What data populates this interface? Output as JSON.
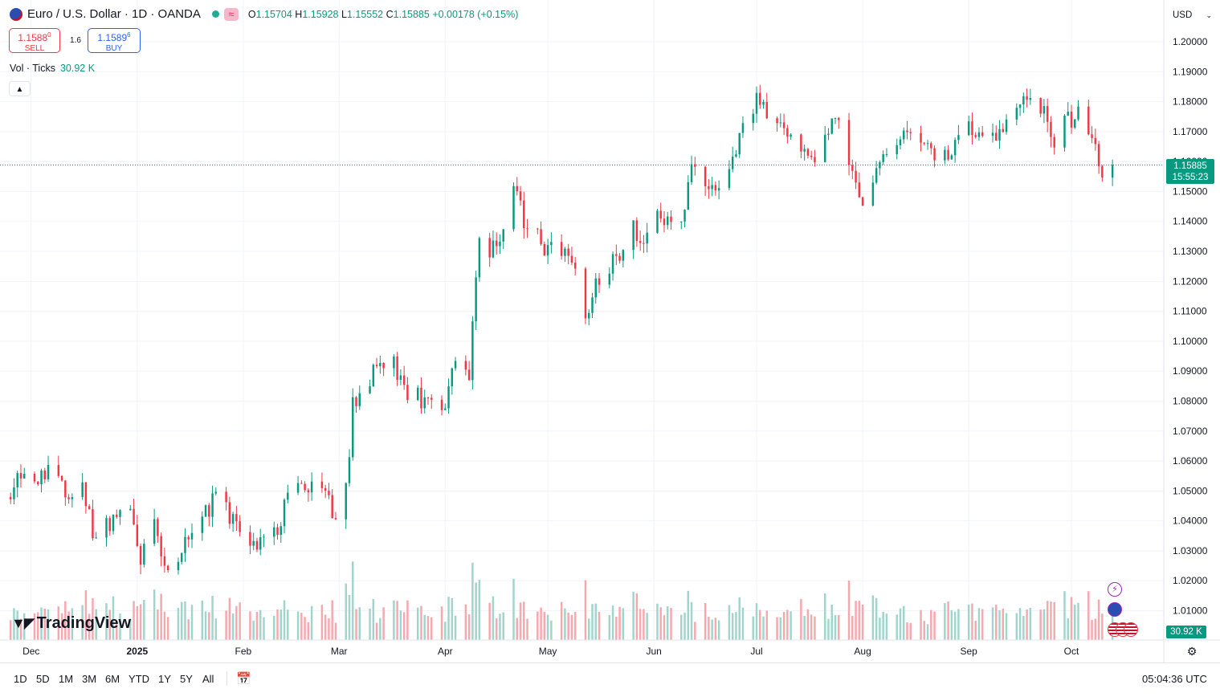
{
  "header": {
    "symbol_title": "Euro / U.S. Dollar · 1D · OANDA",
    "delay_icon": "≈",
    "ohlc": {
      "o_label": "O",
      "o": "1.15704",
      "h_label": "H",
      "h": "1.15928",
      "l_label": "L",
      "l": "1.15552",
      "c_label": "C",
      "c": "1.15885",
      "change": "+0.00178 (+0.15%)"
    }
  },
  "trade": {
    "sell_price": "1.1588",
    "sell_price_sup": "0",
    "sell_label": "SELL",
    "spread": "1.6",
    "buy_price": "1.1589",
    "buy_price_sup": "6",
    "buy_label": "BUY"
  },
  "volume_legend": {
    "label": "Vol · Ticks",
    "value": "30.92 K"
  },
  "collapse_icon": "chevron-up-icon",
  "currency": "USD",
  "last_price": {
    "price": "1.15885",
    "countdown": "15:55:23"
  },
  "volume_badge": "30.92 K",
  "logo_text": "TradingView",
  "bottom_bar": {
    "ranges": [
      "1D",
      "5D",
      "1M",
      "3M",
      "6M",
      "YTD",
      "1Y",
      "5Y",
      "All"
    ],
    "clock": "05:04:36 UTC"
  },
  "colors": {
    "up": "#089981",
    "down": "#f23645",
    "up_vol": "#9fd5cb",
    "down_vol": "#f5a8ae",
    "grid": "#f0f3fa"
  },
  "chart_data": {
    "type": "candlestick",
    "title": "Euro / U.S. Dollar",
    "ylim": [
      1.0,
      1.205
    ],
    "y_ticks": [
      "1.20000",
      "1.19000",
      "1.18000",
      "1.17000",
      "1.16000",
      "1.15000",
      "1.14000",
      "1.13000",
      "1.12000",
      "1.11000",
      "1.10000",
      "1.09000",
      "1.08000",
      "1.07000",
      "1.06000",
      "1.05000",
      "1.04000",
      "1.03000",
      "1.02000",
      "1.01000"
    ],
    "x_ticks": [
      "Dec",
      "2025",
      "Feb",
      "Mar",
      "Apr",
      "May",
      "Jun",
      "Jul",
      "Aug",
      "Sep",
      "Oct"
    ],
    "last_price": 1.15885,
    "series": [
      {
        "name": "EURUSD",
        "anchors": [
          {
            "x": "Nov 25",
            "y": 1.05
          },
          {
            "x": "Nov 27",
            "y": 1.055
          },
          {
            "x": "Nov 29",
            "y": 1.058
          },
          {
            "x": "Dec 03",
            "y": 1.051
          },
          {
            "x": "Dec 06",
            "y": 1.058
          },
          {
            "x": "Dec 11",
            "y": 1.05
          },
          {
            "x": "Dec 16",
            "y": 1.052
          },
          {
            "x": "Dec 19",
            "y": 1.036
          },
          {
            "x": "Dec 24",
            "y": 1.04
          },
          {
            "x": "Dec 30",
            "y": 1.042
          },
          {
            "x": "Jan 02",
            "y": 1.028
          },
          {
            "x": "Jan 06",
            "y": 1.038
          },
          {
            "x": "Jan 10",
            "y": 1.024
          },
          {
            "x": "Jan 14",
            "y": 1.03
          },
          {
            "x": "Jan 20",
            "y": 1.04
          },
          {
            "x": "Jan 24",
            "y": 1.05
          },
          {
            "x": "Jan 28",
            "y": 1.041
          },
          {
            "x": "Feb 03",
            "y": 1.03
          },
          {
            "x": "Feb 07",
            "y": 1.035
          },
          {
            "x": "Feb 12",
            "y": 1.04
          },
          {
            "x": "Feb 14",
            "y": 1.048
          },
          {
            "x": "Feb 20",
            "y": 1.05
          },
          {
            "x": "Feb 26",
            "y": 1.048
          },
          {
            "x": "Feb 28",
            "y": 1.038
          },
          {
            "x": "Mar 04",
            "y": 1.062
          },
          {
            "x": "Mar 05",
            "y": 1.078
          },
          {
            "x": "Mar 07",
            "y": 1.083
          },
          {
            "x": "Mar 12",
            "y": 1.09
          },
          {
            "x": "Mar 17",
            "y": 1.092
          },
          {
            "x": "Mar 20",
            "y": 1.085
          },
          {
            "x": "Mar 25",
            "y": 1.08
          },
          {
            "x": "Mar 28",
            "y": 1.082
          },
          {
            "x": "Apr 01",
            "y": 1.079
          },
          {
            "x": "Apr 04",
            "y": 1.096
          },
          {
            "x": "Apr 08",
            "y": 1.09
          },
          {
            "x": "Apr 10",
            "y": 1.12
          },
          {
            "x": "Apr 11",
            "y": 1.135
          },
          {
            "x": "Apr 15",
            "y": 1.13
          },
          {
            "x": "Apr 18",
            "y": 1.138
          },
          {
            "x": "Apr 21",
            "y": 1.15
          },
          {
            "x": "Apr 25",
            "y": 1.137
          },
          {
            "x": "Apr 30",
            "y": 1.132
          },
          {
            "x": "May 05",
            "y": 1.132
          },
          {
            "x": "May 08",
            "y": 1.125
          },
          {
            "x": "May 12",
            "y": 1.11
          },
          {
            "x": "May 15",
            "y": 1.119
          },
          {
            "x": "May 20",
            "y": 1.127
          },
          {
            "x": "May 26",
            "y": 1.137
          },
          {
            "x": "May 29",
            "y": 1.135
          },
          {
            "x": "Jun 03",
            "y": 1.142
          },
          {
            "x": "Jun 09",
            "y": 1.14
          },
          {
            "x": "Jun 12",
            "y": 1.157
          },
          {
            "x": "Jun 17",
            "y": 1.15
          },
          {
            "x": "Jun 20",
            "y": 1.148
          },
          {
            "x": "Jun 24",
            "y": 1.162
          },
          {
            "x": "Jun 27",
            "y": 1.172
          },
          {
            "x": "Jul 01",
            "y": 1.18
          },
          {
            "x": "Jul 07",
            "y": 1.171
          },
          {
            "x": "Jul 14",
            "y": 1.167
          },
          {
            "x": "Jul 18",
            "y": 1.162
          },
          {
            "x": "Jul 22",
            "y": 1.17
          },
          {
            "x": "Jul 25",
            "y": 1.175
          },
          {
            "x": "Jul 29",
            "y": 1.155
          },
          {
            "x": "Aug 01",
            "y": 1.142
          },
          {
            "x": "Aug 05",
            "y": 1.157
          },
          {
            "x": "Aug 08",
            "y": 1.164
          },
          {
            "x": "Aug 13",
            "y": 1.17
          },
          {
            "x": "Aug 20",
            "y": 1.163
          },
          {
            "x": "Aug 26",
            "y": 1.163
          },
          {
            "x": "Sep 01",
            "y": 1.17
          },
          {
            "x": "Sep 05",
            "y": 1.171
          },
          {
            "x": "Sep 10",
            "y": 1.17
          },
          {
            "x": "Sep 16",
            "y": 1.18
          },
          {
            "x": "Sep 17",
            "y": 1.182
          },
          {
            "x": "Sep 22",
            "y": 1.179
          },
          {
            "x": "Sep 25",
            "y": 1.167
          },
          {
            "x": "Sep 30",
            "y": 1.173
          },
          {
            "x": "Oct 03",
            "y": 1.175
          },
          {
            "x": "Oct 06",
            "y": 1.172
          },
          {
            "x": "Oct 08",
            "y": 1.163
          },
          {
            "x": "Oct 09",
            "y": 1.157
          },
          {
            "x": "Oct 13",
            "y": 1.159
          }
        ]
      },
      {
        "name": "Vol · Ticks",
        "unit": "K",
        "last": 30.92
      }
    ]
  }
}
